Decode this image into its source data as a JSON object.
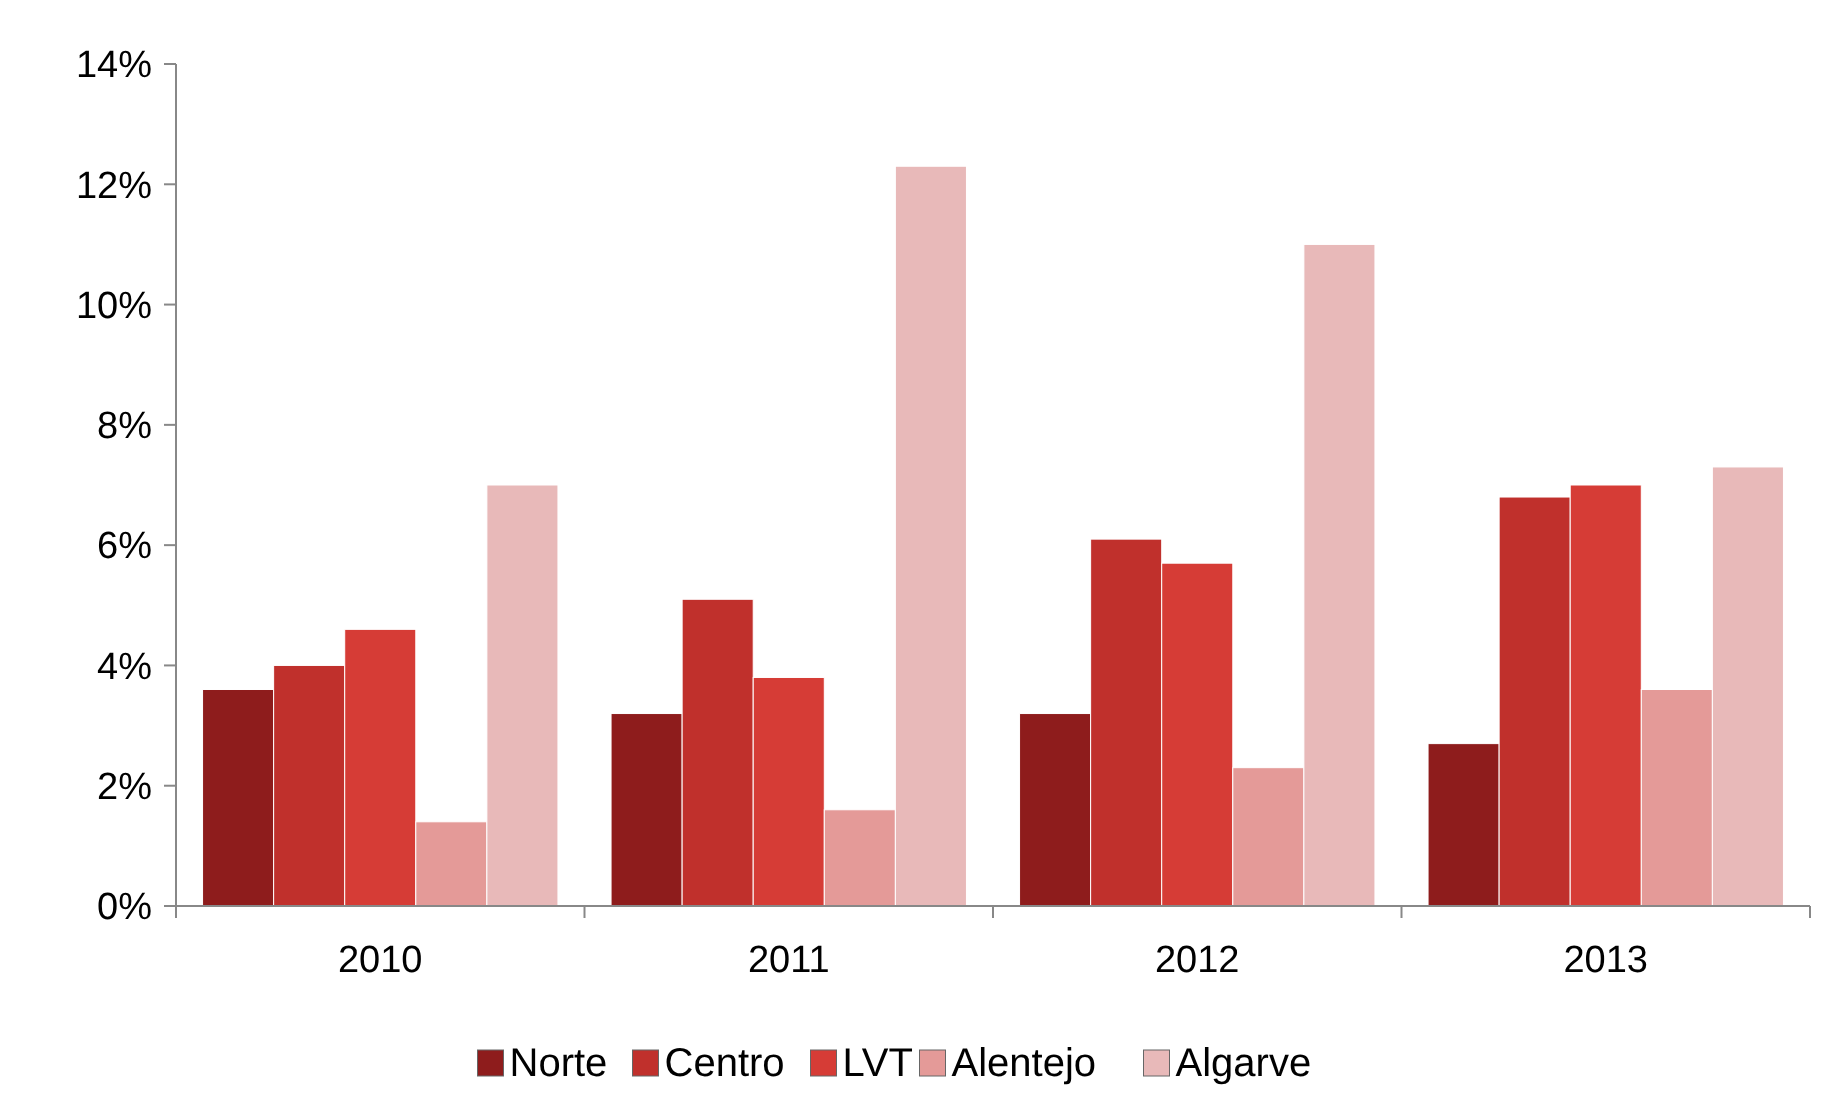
{
  "chart_data": {
    "type": "bar",
    "categories": [
      "2010",
      "2011",
      "2012",
      "2013"
    ],
    "series": [
      {
        "name": "Norte",
        "color": "#8e1c1c",
        "values": [
          3.6,
          3.2,
          3.2,
          2.7
        ]
      },
      {
        "name": "Centro",
        "color": "#c0302c",
        "values": [
          4.0,
          5.1,
          6.1,
          6.8
        ]
      },
      {
        "name": "LVT",
        "color": "#d63c36",
        "values": [
          4.6,
          3.8,
          5.7,
          7.0
        ]
      },
      {
        "name": "Alentejo",
        "color": "#e49a98",
        "values": [
          1.4,
          1.6,
          2.3,
          3.6
        ]
      },
      {
        "name": "Algarve",
        "color": "#e8b9b9",
        "values": [
          7.0,
          12.3,
          11.0,
          7.3
        ]
      }
    ],
    "ylim": [
      0,
      14
    ],
    "yticks": [
      {
        "value": 0,
        "label": "0%"
      },
      {
        "value": 2,
        "label": "2%"
      },
      {
        "value": 4,
        "label": "4%"
      },
      {
        "value": 6,
        "label": "6%"
      },
      {
        "value": 8,
        "label": "8%"
      },
      {
        "value": 10,
        "label": "10%"
      },
      {
        "value": 12,
        "label": "12%"
      },
      {
        "value": 14,
        "label": "14%"
      }
    ],
    "grid": false,
    "legend": "bottom"
  }
}
